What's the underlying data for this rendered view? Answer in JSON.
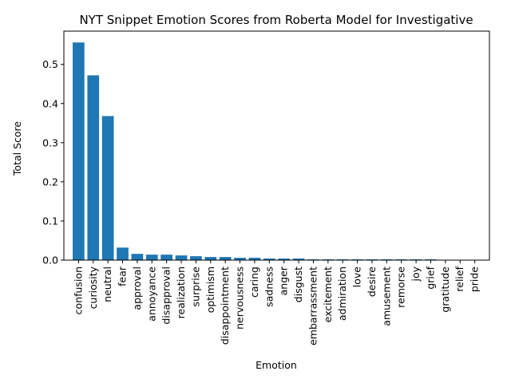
{
  "chart_data": {
    "type": "bar",
    "title": "NYT Snippet Emotion Scores from Roberta Model for Investigative",
    "xlabel": "Emotion",
    "ylabel": "Total Score",
    "ylim": [
      0,
      0.585
    ],
    "yticks": [
      "0.0",
      "0.1",
      "0.2",
      "0.3",
      "0.4",
      "0.5"
    ],
    "yticks_values": [
      0,
      0.1,
      0.2,
      0.3,
      0.4,
      0.5
    ],
    "grid": false,
    "bar_color": "#1f77b4",
    "categories": [
      "confusion",
      "curiosity",
      "neutral",
      "fear",
      "approval",
      "annoyance",
      "disapproval",
      "realization",
      "surprise",
      "optimism",
      "disappointment",
      "nervousness",
      "caring",
      "sadness",
      "anger",
      "disgust",
      "embarrassment",
      "excitement",
      "admiration",
      "love",
      "desire",
      "amusement",
      "remorse",
      "joy",
      "grief",
      "gratitude",
      "relief",
      "pride"
    ],
    "values": [
      0.556,
      0.472,
      0.368,
      0.032,
      0.016,
      0.014,
      0.014,
      0.012,
      0.01,
      0.008,
      0.008,
      0.006,
      0.006,
      0.004,
      0.004,
      0.004,
      0.002,
      0.002,
      0.002,
      0.002,
      0.002,
      0.002,
      0.002,
      0.002,
      0.002,
      0.0005,
      0.0005,
      0.0003
    ]
  }
}
